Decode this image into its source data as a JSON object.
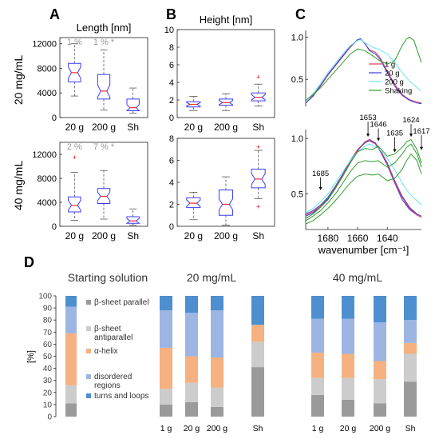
{
  "figure": {
    "panel_labels": [
      "A",
      "B",
      "C",
      "D"
    ],
    "row_labels": [
      "20 mg/mL",
      "40 mg/mL"
    ]
  },
  "colors": {
    "box": "#3a3aff",
    "median": "#ff2a2a",
    "whisker": "#555555",
    "outlier": "#e01010",
    "annotation": "#999999",
    "struct": [
      "#9a9a9a",
      "#cccccc",
      "#f5b180",
      "#9db5e3",
      "#4d8fcf"
    ],
    "spec": [
      "#e8394f",
      "#3a3ad8",
      "#66e6ee",
      "#2e9e2e"
    ]
  },
  "chart_data": [
    {
      "type": "box",
      "id": "length-20",
      "title": "Length [nm]",
      "ylim": [
        0,
        13000
      ],
      "yticks": [
        0,
        4000,
        8000,
        12000
      ],
      "categories": [
        "20 g",
        "200 g",
        "Sh"
      ],
      "annotations": [
        {
          "text": "1 %",
          "cat": 0
        },
        {
          "text": "1 % *",
          "cat": 1
        }
      ],
      "boxes": [
        {
          "whislo": 3500,
          "q1": 5800,
          "med": 7300,
          "q3": 8800,
          "whishi": 12000,
          "notch": 900,
          "fliers": []
        },
        {
          "whislo": 1200,
          "q1": 3000,
          "med": 4300,
          "q3": 7000,
          "whishi": 11000,
          "notch": 1000,
          "fliers": []
        },
        {
          "whislo": 700,
          "q1": 1100,
          "med": 1600,
          "q3": 3000,
          "whishi": 4800,
          "notch": 500,
          "fliers": []
        }
      ]
    },
    {
      "type": "box",
      "id": "height-20",
      "title": "Height [nm]",
      "ylim": [
        0,
        10
      ],
      "yticks": [
        0,
        2,
        4,
        6,
        8,
        10
      ],
      "categories": [
        "20 g",
        "200 g",
        "Sh"
      ],
      "annotations": [],
      "boxes": [
        {
          "whislo": 0.8,
          "q1": 1.2,
          "med": 1.5,
          "q3": 1.8,
          "whishi": 2.4,
          "notch": 0.2,
          "fliers": []
        },
        {
          "whislo": 0.8,
          "q1": 1.4,
          "med": 1.7,
          "q3": 2.1,
          "whishi": 2.7,
          "notch": 0.25,
          "fliers": []
        },
        {
          "whislo": 1.3,
          "q1": 1.9,
          "med": 2.3,
          "q3": 2.8,
          "whishi": 3.8,
          "notch": 0.3,
          "fliers": [
            4.6
          ]
        }
      ]
    },
    {
      "type": "box",
      "id": "length-40",
      "title": "",
      "ylim": [
        0,
        14000
      ],
      "yticks": [
        0,
        4000,
        8000,
        12000
      ],
      "categories": [
        "20 g",
        "200 g",
        "Sh"
      ],
      "annotations": [
        {
          "text": "2 %",
          "cat": 0
        },
        {
          "text": "7 % *",
          "cat": 1
        }
      ],
      "boxes": [
        {
          "whislo": 1000,
          "q1": 2400,
          "med": 3500,
          "q3": 4900,
          "whishi": 9000,
          "notch": 800,
          "fliers": [
            11500
          ]
        },
        {
          "whislo": 1200,
          "q1": 3800,
          "med": 5000,
          "q3": 6300,
          "whishi": 9300,
          "notch": 700,
          "fliers": []
        },
        {
          "whislo": 200,
          "q1": 500,
          "med": 900,
          "q3": 1600,
          "whishi": 2900,
          "notch": 400,
          "fliers": []
        }
      ]
    },
    {
      "type": "box",
      "id": "height-40",
      "title": "",
      "ylim": [
        0,
        8
      ],
      "yticks": [
        0,
        2,
        4,
        6,
        8
      ],
      "categories": [
        "20 g",
        "200 g",
        "Sh"
      ],
      "annotations": [],
      "boxes": [
        {
          "whislo": 0.6,
          "q1": 1.7,
          "med": 2.1,
          "q3": 2.6,
          "whishi": 3.1,
          "notch": 0.3,
          "fliers": []
        },
        {
          "whislo": 0.1,
          "q1": 1.0,
          "med": 2.0,
          "q3": 3.3,
          "whishi": 4.5,
          "notch": 0.5,
          "fliers": []
        },
        {
          "whislo": 2.5,
          "q1": 3.5,
          "med": 4.3,
          "q3": 5.2,
          "whishi": 6.9,
          "notch": 0.5,
          "fliers": [
            7.2,
            1.8
          ]
        }
      ]
    },
    {
      "type": "line",
      "id": "ftir-20",
      "title": "",
      "xlabel": "",
      "xlim": [
        1695,
        1617
      ],
      "ylim": [
        0.18,
        1.08
      ],
      "yticks": [
        0.5,
        1.0
      ],
      "xticks": [],
      "series": [
        {
          "name": "1 g",
          "x": [
            1695,
            1690,
            1685,
            1680,
            1675,
            1670,
            1665,
            1660,
            1658,
            1655,
            1652,
            1648,
            1645,
            1640,
            1635,
            1630,
            1625,
            1620,
            1617
          ],
          "y": [
            0.22,
            0.3,
            0.42,
            0.55,
            0.66,
            0.77,
            0.88,
            0.97,
            0.98,
            0.92,
            0.85,
            0.82,
            0.76,
            0.6,
            0.44,
            0.32,
            0.26,
            0.23,
            0.22
          ]
        },
        {
          "name": "20 g",
          "x": [
            1695,
            1690,
            1685,
            1680,
            1675,
            1670,
            1665,
            1660,
            1658,
            1655,
            1652,
            1648,
            1645,
            1640,
            1635,
            1630,
            1625,
            1620,
            1617
          ],
          "y": [
            0.22,
            0.31,
            0.43,
            0.56,
            0.67,
            0.78,
            0.89,
            0.97,
            0.98,
            0.92,
            0.84,
            0.8,
            0.74,
            0.58,
            0.42,
            0.31,
            0.25,
            0.22,
            0.21
          ]
        },
        {
          "name": "200 g",
          "x": [
            1695,
            1690,
            1685,
            1680,
            1675,
            1670,
            1665,
            1660,
            1658,
            1655,
            1650,
            1645,
            1640,
            1635,
            1630,
            1625,
            1620,
            1617
          ],
          "y": [
            0.24,
            0.33,
            0.45,
            0.58,
            0.69,
            0.8,
            0.9,
            0.96,
            0.97,
            0.93,
            0.88,
            0.85,
            0.8,
            0.7,
            0.58,
            0.48,
            0.4,
            0.36
          ]
        },
        {
          "name": "Shaking",
          "x": [
            1695,
            1690,
            1685,
            1680,
            1675,
            1670,
            1665,
            1660,
            1655,
            1650,
            1645,
            1640,
            1635,
            1630,
            1627,
            1625,
            1622,
            1620,
            1617
          ],
          "y": [
            0.25,
            0.32,
            0.4,
            0.5,
            0.6,
            0.7,
            0.8,
            0.86,
            0.84,
            0.78,
            0.72,
            0.68,
            0.72,
            0.9,
            0.98,
            1.0,
            0.96,
            0.85,
            0.7
          ]
        }
      ],
      "legend": "upper-right"
    },
    {
      "type": "line",
      "id": "ftir-40",
      "title": "",
      "xlabel": "wavenumber [cm⁻¹]",
      "xlim": [
        1695,
        1617
      ],
      "ylim": [
        0.18,
        1.08
      ],
      "yticks": [
        0.5,
        1.0
      ],
      "xticks": [
        1680,
        1660,
        1640
      ],
      "peaks": [
        {
          "label": "1685",
          "x": 1685,
          "y": 0.52
        },
        {
          "label": "1653",
          "x": 1653,
          "y": 1.0
        },
        {
          "label": "1646",
          "x": 1646,
          "y": 0.96
        },
        {
          "label": "1635",
          "x": 1635,
          "y": 0.86
        },
        {
          "label": "1624",
          "x": 1624,
          "y": 1.0
        },
        {
          "label": "1617",
          "x": 1617,
          "y": 0.88
        }
      ],
      "series": [
        {
          "name": "blue-1",
          "color": 1,
          "x": [
            1695,
            1690,
            1685,
            1680,
            1675,
            1670,
            1665,
            1660,
            1655,
            1652,
            1648,
            1645,
            1640,
            1635,
            1630,
            1625,
            1620,
            1617
          ],
          "y": [
            0.3,
            0.33,
            0.38,
            0.45,
            0.55,
            0.66,
            0.78,
            0.89,
            0.97,
            0.99,
            0.96,
            0.9,
            0.78,
            0.62,
            0.48,
            0.38,
            0.32,
            0.3
          ]
        },
        {
          "name": "blue-2",
          "color": 1,
          "x": [
            1695,
            1690,
            1685,
            1680,
            1675,
            1670,
            1665,
            1660,
            1655,
            1652,
            1648,
            1645,
            1640,
            1635,
            1630,
            1625,
            1620,
            1617
          ],
          "y": [
            0.32,
            0.35,
            0.4,
            0.47,
            0.57,
            0.68,
            0.8,
            0.9,
            0.96,
            0.98,
            0.95,
            0.89,
            0.76,
            0.6,
            0.45,
            0.36,
            0.31,
            0.29
          ]
        },
        {
          "name": "red",
          "color": 0,
          "x": [
            1695,
            1690,
            1685,
            1680,
            1675,
            1670,
            1665,
            1660,
            1655,
            1652,
            1648,
            1645,
            1640,
            1635,
            1630,
            1625,
            1620,
            1617
          ],
          "y": [
            0.31,
            0.34,
            0.39,
            0.46,
            0.56,
            0.67,
            0.79,
            0.9,
            0.97,
            0.99,
            0.95,
            0.9,
            0.77,
            0.61,
            0.47,
            0.37,
            0.31,
            0.29
          ]
        },
        {
          "name": "cyan",
          "color": 2,
          "x": [
            1695,
            1690,
            1685,
            1680,
            1675,
            1670,
            1665,
            1660,
            1655,
            1652,
            1648,
            1645,
            1640,
            1635,
            1630,
            1625,
            1620,
            1617
          ],
          "y": [
            0.33,
            0.37,
            0.43,
            0.5,
            0.6,
            0.7,
            0.8,
            0.88,
            0.93,
            0.95,
            0.93,
            0.9,
            0.82,
            0.72,
            0.6,
            0.5,
            0.44,
            0.4
          ]
        },
        {
          "name": "green-1",
          "color": 3,
          "x": [
            1695,
            1690,
            1685,
            1680,
            1675,
            1670,
            1665,
            1660,
            1655,
            1650,
            1646,
            1640,
            1635,
            1630,
            1627,
            1624,
            1620,
            1617
          ],
          "y": [
            0.28,
            0.32,
            0.38,
            0.46,
            0.55,
            0.66,
            0.78,
            0.88,
            0.91,
            0.9,
            0.93,
            0.84,
            0.86,
            0.92,
            0.97,
            0.99,
            0.9,
            0.78
          ]
        },
        {
          "name": "green-2",
          "color": 3,
          "x": [
            1695,
            1690,
            1685,
            1680,
            1675,
            1670,
            1665,
            1660,
            1655,
            1650,
            1646,
            1640,
            1635,
            1630,
            1627,
            1624,
            1620,
            1617
          ],
          "y": [
            0.26,
            0.3,
            0.35,
            0.42,
            0.5,
            0.6,
            0.7,
            0.78,
            0.8,
            0.79,
            0.8,
            0.74,
            0.78,
            0.86,
            0.92,
            0.95,
            0.86,
            0.74
          ]
        },
        {
          "name": "green-3",
          "color": 3,
          "x": [
            1695,
            1690,
            1685,
            1680,
            1675,
            1670,
            1665,
            1660,
            1655,
            1650,
            1646,
            1640,
            1635,
            1630,
            1627,
            1624,
            1620,
            1617
          ],
          "y": [
            0.23,
            0.26,
            0.31,
            0.37,
            0.44,
            0.52,
            0.6,
            0.66,
            0.68,
            0.67,
            0.68,
            0.62,
            0.64,
            0.72,
            0.8,
            0.86,
            0.8,
            0.68
          ]
        }
      ]
    },
    {
      "type": "bar-stacked",
      "id": "structure",
      "ylabel": "[%]",
      "ylim": [
        0,
        100
      ],
      "yticks": [
        0,
        10,
        20,
        30,
        40,
        50,
        60,
        70,
        80,
        90,
        100
      ],
      "legend_labels": [
        "β-sheet parallel",
        "β-sheet antiparallel",
        "α-helix",
        "disordered regions",
        "turns and loops"
      ],
      "groups": [
        {
          "title": "Starting solution",
          "categories": [
            ""
          ],
          "stacks": [
            [
              11,
              15,
              43,
              22,
              9
            ]
          ]
        },
        {
          "title": "20 mg/mL",
          "categories": [
            "1 g",
            "20 g",
            "200 g",
            "Sh"
          ],
          "stacks": [
            [
              10,
              13,
              34,
              31,
              12
            ],
            [
              12,
              16,
              22,
              36,
              14
            ],
            [
              8,
              16,
              25,
              39,
              12
            ],
            [
              41,
              21,
              14,
              0,
              24
            ]
          ]
        },
        {
          "title": "40 mg/mL",
          "categories": [
            "1 g",
            "20 g",
            "200 g",
            "Sh"
          ],
          "stacks": [
            [
              18,
              14,
              21,
              28,
              19
            ],
            [
              14,
              18,
              20,
              29,
              19
            ],
            [
              11,
              20,
              15,
              32,
              22
            ],
            [
              29,
              23,
              9,
              19,
              20
            ]
          ]
        }
      ]
    }
  ]
}
